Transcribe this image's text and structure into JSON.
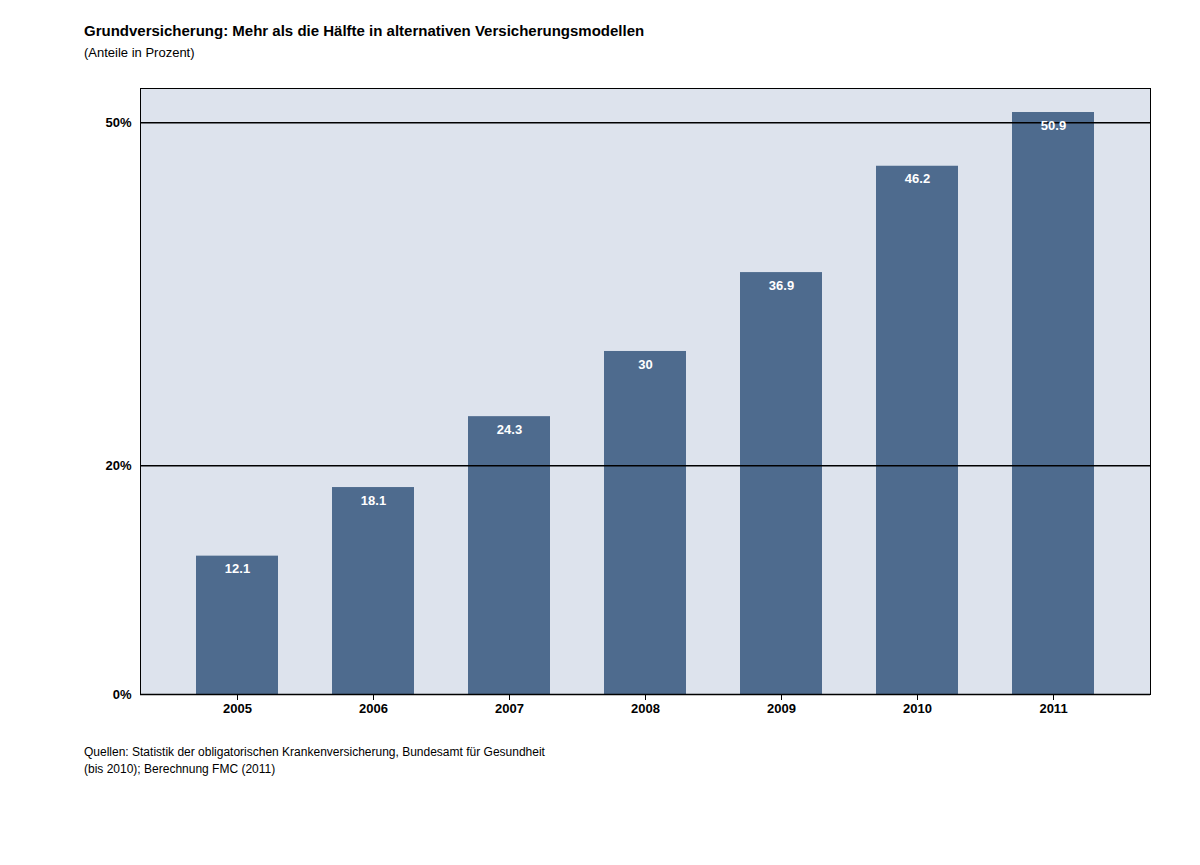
{
  "chart_data": {
    "type": "bar",
    "title": "Grundversicherung: Mehr als die Hälfte in alternativen Versicherungsmodellen",
    "subtitle": "(Anteile in Prozent)",
    "source": "Quellen: Statistik der obligatorischen Krankenversicherung, Bundesamt für Gesundheit\n(bis 2010); Berechnung FMC (2011)",
    "categories": [
      "2005",
      "2006",
      "2007",
      "2008",
      "2009",
      "2010",
      "2011"
    ],
    "values": [
      12.1,
      18.1,
      24.3,
      30.0,
      36.9,
      46.2,
      50.9
    ],
    "color": "#4e6b8e",
    "ylim": [
      0,
      53
    ],
    "yticks": [
      {
        "value": 0,
        "label": "0%"
      },
      {
        "value": 20,
        "label": "20%"
      },
      {
        "value": 50,
        "label": "50%"
      }
    ],
    "grid": true,
    "data_labels": true
  }
}
